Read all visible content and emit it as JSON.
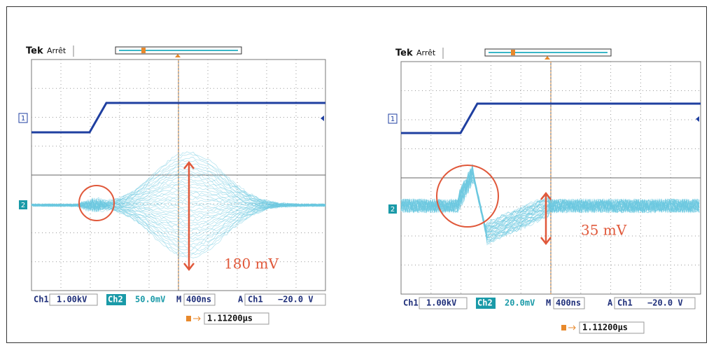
{
  "panels": [
    {
      "brand": "Tek",
      "state": "Arrêt",
      "ch1_marker": "1",
      "ch2_marker": "2",
      "status": {
        "ch1": "Ch1",
        "ch1_scale": "1.00kV",
        "ch2": "Ch2",
        "ch2_scale": "50.0mV",
        "time_prefix": "M",
        "timebase": "400ns",
        "trigger_mode": "A",
        "trigger_source": "Ch1",
        "trigger_level": "−20.0 V"
      },
      "trigger_position": "1.11200µs",
      "annotation": "180 mV"
    },
    {
      "brand": "Tek",
      "state": "Arrêt",
      "ch1_marker": "1",
      "ch2_marker": "2",
      "status": {
        "ch1": "Ch1",
        "ch1_scale": "1.00kV",
        "ch2": "Ch2",
        "ch2_scale": "20.0mV",
        "time_prefix": "M",
        "timebase": "400ns",
        "trigger_mode": "A",
        "trigger_source": "Ch1",
        "trigger_level": "−20.0 V"
      },
      "trigger_position": "1.11200µs",
      "annotation": "35 mV"
    }
  ]
}
